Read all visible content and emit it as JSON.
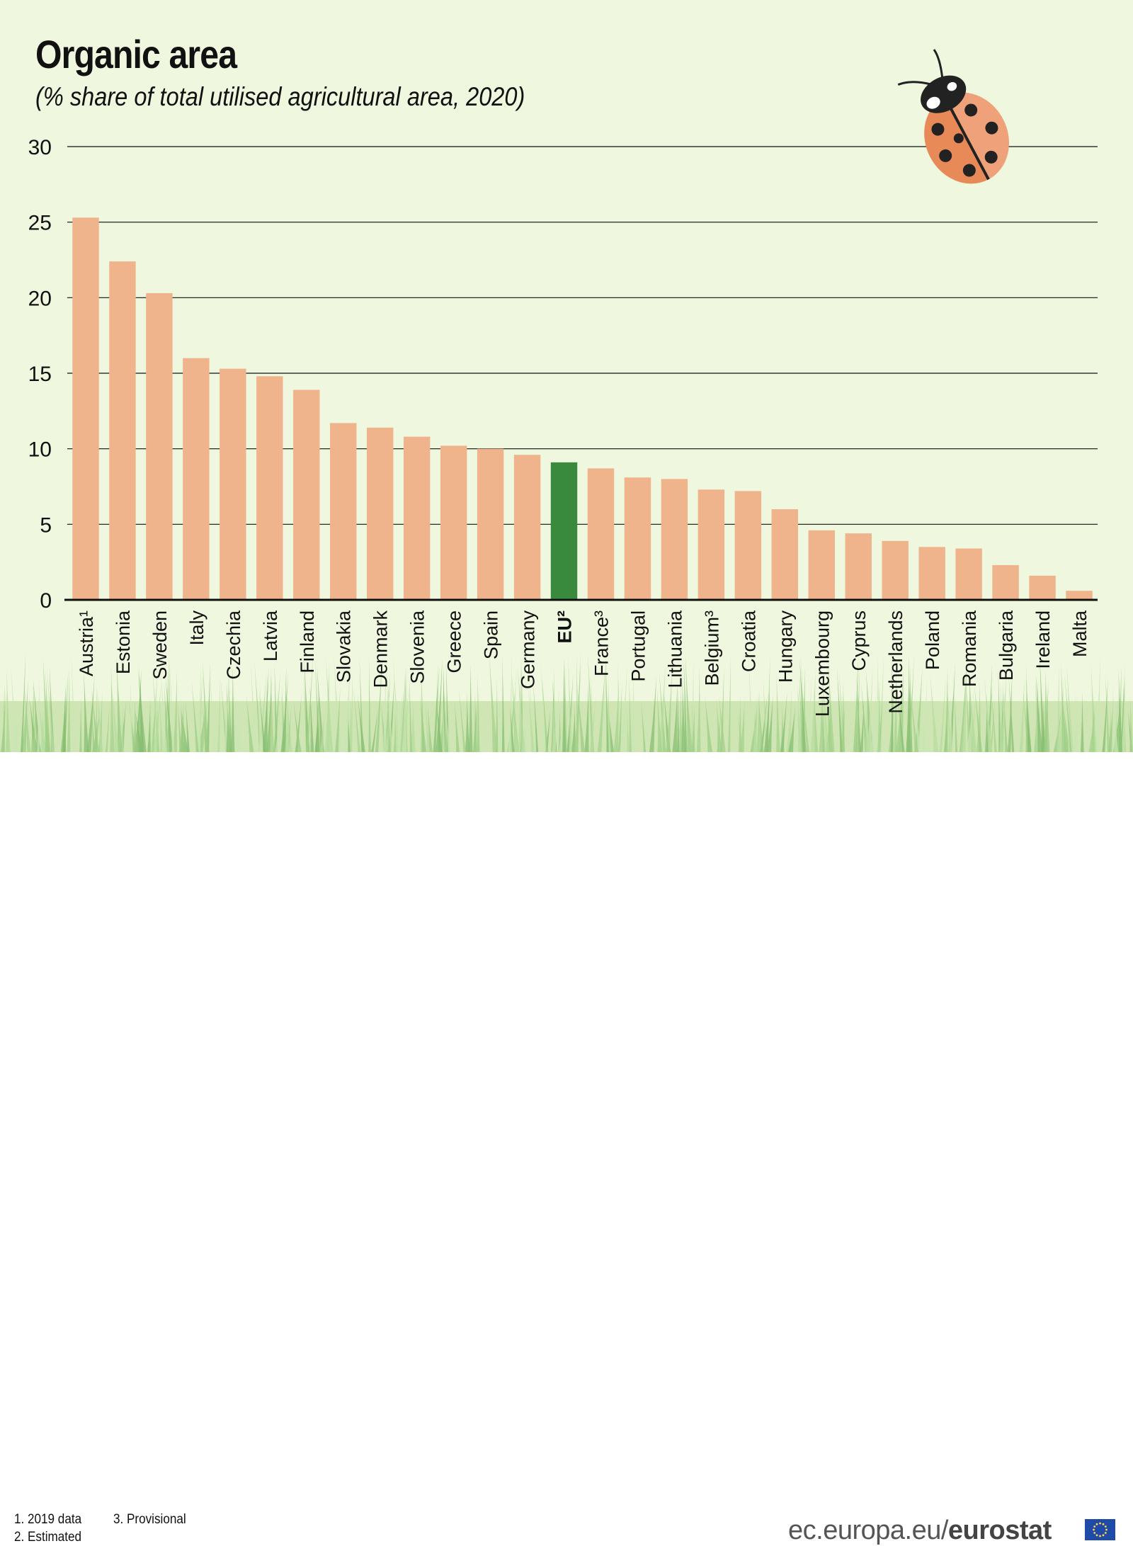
{
  "title": "Organic area",
  "subtitle": "(% share of total utilised agricultural area, 2020)",
  "notes": [
    "1. 2019 data",
    "2. Estimated",
    "3. Provisional"
  ],
  "source": {
    "prefix": "ec.europa.eu/",
    "brand": "eurostat"
  },
  "colors": {
    "bar": "#f0b48c",
    "highlight": "#3a8a3e",
    "background": "#eff7df",
    "grid": "#111111"
  },
  "icons": [
    "ladybug-icon",
    "grass-decoration",
    "eu-flag-icon"
  ],
  "chart_data": {
    "type": "bar",
    "title": "Organic area",
    "subtitle": "(% share of total utilised agricultural area, 2020)",
    "categories": [
      "Austria¹",
      "Estonia",
      "Sweden",
      "Italy",
      "Czechia",
      "Latvia",
      "Finland",
      "Slovakia",
      "Denmark",
      "Slovenia",
      "Greece",
      "Spain",
      "Germany",
      "EU²",
      "France³",
      "Portugal",
      "Lithuania",
      "Belgium³",
      "Croatia",
      "Hungary",
      "Luxembourg",
      "Cyprus",
      "Netherlands",
      "Poland",
      "Romania",
      "Bulgaria",
      "Ireland",
      "Malta"
    ],
    "values": [
      25.3,
      22.4,
      20.3,
      16.0,
      15.3,
      14.8,
      13.9,
      11.7,
      11.4,
      10.8,
      10.2,
      10.0,
      9.6,
      9.1,
      8.7,
      8.1,
      8.0,
      7.3,
      7.2,
      6.0,
      4.6,
      4.4,
      3.9,
      3.5,
      3.4,
      2.3,
      1.6,
      0.6
    ],
    "highlight": "EU²",
    "ylim": [
      0,
      30
    ],
    "yticks": [
      0,
      5,
      10,
      15,
      20,
      25,
      30
    ],
    "xlabel": "",
    "ylabel": "",
    "grid": true,
    "legend": "none"
  }
}
